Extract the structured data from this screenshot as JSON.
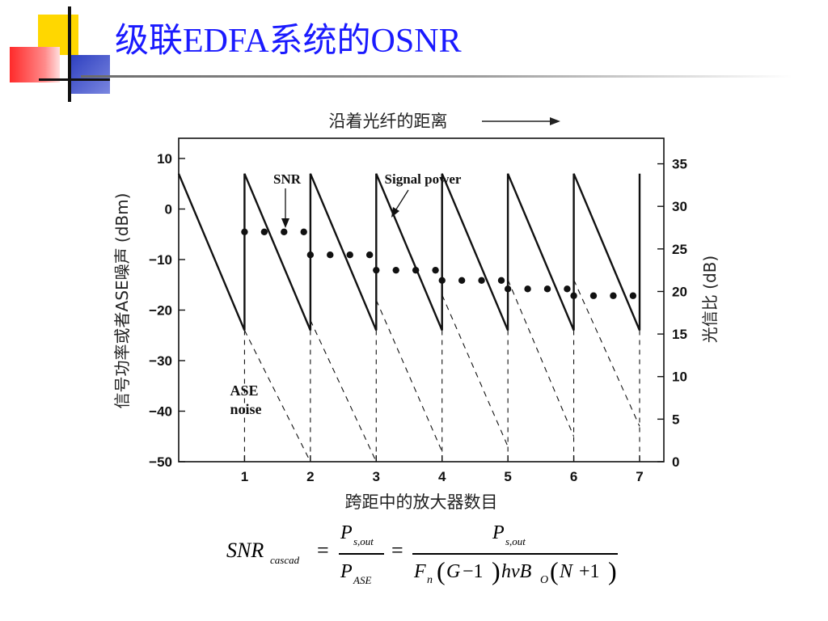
{
  "slide": {
    "title": "级联EDFA系统的OSNR",
    "colors": {
      "title": "#1a1aff",
      "deco_yellow": "#ffd700",
      "deco_red": "#ff3030",
      "deco_blue": "#3e50c8"
    }
  },
  "chart_data": {
    "type": "line",
    "title": "沿着光纤的距离",
    "xlabel": "跨距中的放大器数目",
    "ylabel_left": "信号功率或者ASE噪声 (dBm)",
    "ylabel_right": "光信比 (dB)",
    "x_range": [
      0,
      7
    ],
    "y_left_range": [
      -50,
      14
    ],
    "y_right_range": [
      0,
      38
    ],
    "x_ticks": [
      1,
      2,
      3,
      4,
      5,
      6,
      7
    ],
    "y_left_ticks": [
      10,
      0,
      -10,
      -20,
      -30,
      -40,
      -50
    ],
    "y_left_tick_labels": [
      "10",
      "0",
      "−10",
      "−20",
      "−30",
      "−40",
      "−50"
    ],
    "y_right_ticks": [
      35,
      30,
      25,
      20,
      15,
      10,
      5,
      0
    ],
    "annotations": [
      {
        "text": "SNR"
      },
      {
        "text": "Signal power"
      },
      {
        "text": "ASE",
        "text2": "noise"
      }
    ],
    "signal_power": {
      "axis": "left",
      "points": [
        [
          0,
          7
        ],
        [
          1,
          -24
        ],
        [
          1,
          7
        ],
        [
          2,
          -24
        ],
        [
          2,
          7
        ],
        [
          3,
          -24
        ],
        [
          3,
          7
        ],
        [
          4,
          -24
        ],
        [
          4,
          7
        ],
        [
          5,
          -24
        ],
        [
          5,
          7
        ],
        [
          6,
          -24
        ],
        [
          6,
          7
        ],
        [
          7,
          -24
        ],
        [
          7,
          7
        ]
      ]
    },
    "ase_noise": {
      "axis": "left",
      "points": [
        [
          1,
          -24
        ],
        [
          2,
          -50
        ],
        [
          2,
          -22
        ],
        [
          3,
          -50
        ],
        [
          3,
          -18
        ],
        [
          4,
          -48
        ],
        [
          4,
          -17
        ],
        [
          5,
          -47
        ],
        [
          5,
          -14
        ],
        [
          6,
          -45
        ],
        [
          6,
          -14
        ],
        [
          7,
          -43
        ]
      ]
    },
    "snr_dots": {
      "axis": "right",
      "x": [
        1.0,
        1.3,
        1.6,
        1.9,
        2.0,
        2.3,
        2.6,
        2.9,
        3.0,
        3.3,
        3.6,
        3.9,
        4.0,
        4.3,
        4.6,
        4.9,
        5.0,
        5.3,
        5.6,
        5.9,
        6.0,
        6.3,
        6.6,
        6.9
      ],
      "y": [
        27.0,
        27.0,
        27.0,
        27.0,
        24.3,
        24.3,
        24.3,
        24.3,
        22.5,
        22.5,
        22.5,
        22.5,
        21.3,
        21.3,
        21.3,
        21.3,
        20.3,
        20.3,
        20.3,
        20.3,
        19.5,
        19.5,
        19.5,
        19.5
      ]
    }
  },
  "formula": {
    "snr": "SNR",
    "snr_sub": "cascad",
    "eq": "=",
    "p_s": "P",
    "p_s_sub": "s,out",
    "p_ase": "P",
    "p_ase_sub": "ASE",
    "f": "F",
    "f_sub": "n",
    "g_term": "G",
    "minus_one": "−1",
    "hv": "hνB",
    "hv_sub": "O",
    "n_term": "N",
    "plus_one": "+1"
  }
}
